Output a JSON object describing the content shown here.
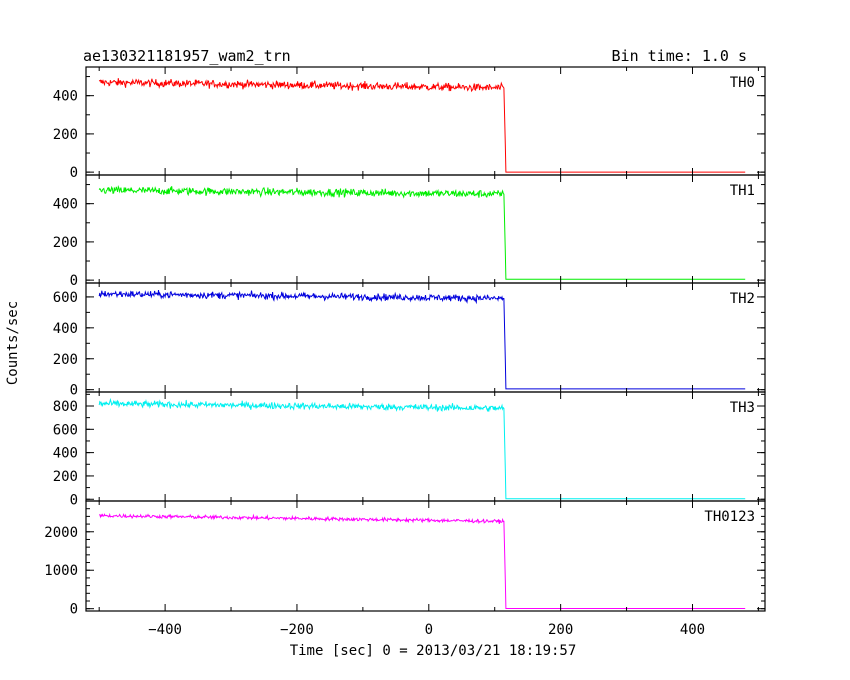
{
  "chart_data": {
    "type": "line",
    "title": "ae130321181957_wam2_trn",
    "bin_time": "Bin time: 1.0 s",
    "xlabel": "Time [sec] 0 = 2013/03/21 18:19:57",
    "ylabel": "Counts/sec",
    "xlim": [
      -520,
      510
    ],
    "x_ticks": [
      -400,
      -200,
      0,
      200,
      400
    ],
    "x_tick_labels": [
      "−400",
      "−200",
      "0",
      "200",
      "400"
    ],
    "step_time": 117,
    "x_start": -500,
    "x_end": 480,
    "grid": false,
    "panels": [
      {
        "name": "TH0",
        "color": "#ff0000",
        "ylim": [
          -15,
          550
        ],
        "y_ticks": [
          0,
          200,
          400
        ],
        "y_tick_labels": [
          "0",
          "200",
          "400"
        ],
        "minor_step": 100,
        "level_start": 470,
        "level_end": 440,
        "noise": 20,
        "after": 0
      },
      {
        "name": "TH1",
        "color": "#00ee00",
        "ylim": [
          -15,
          550
        ],
        "y_ticks": [
          0,
          200,
          400
        ],
        "y_tick_labels": [
          "0",
          "200",
          "400"
        ],
        "minor_step": 100,
        "level_start": 470,
        "level_end": 450,
        "noise": 20,
        "after": 5
      },
      {
        "name": "TH2",
        "color": "#0000dd",
        "ylim": [
          -15,
          690
        ],
        "y_ticks": [
          0,
          200,
          400,
          600
        ],
        "y_tick_labels": [
          "0",
          "200",
          "400",
          "600"
        ],
        "minor_step": 100,
        "level_start": 620,
        "level_end": 590,
        "noise": 22,
        "after": 5
      },
      {
        "name": "TH3",
        "color": "#00f0f0",
        "ylim": [
          -15,
          920
        ],
        "y_ticks": [
          0,
          200,
          400,
          600,
          800
        ],
        "y_tick_labels": [
          "0",
          "200",
          "400",
          "600",
          "800"
        ],
        "minor_step": 100,
        "level_start": 820,
        "level_end": 780,
        "noise": 28,
        "after": 5
      },
      {
        "name": "TH0123",
        "color": "#ff00ff",
        "ylim": [
          -60,
          2800
        ],
        "y_ticks": [
          0,
          1000,
          2000
        ],
        "y_tick_labels": [
          "0",
          "1000",
          "2000"
        ],
        "minor_step": 200,
        "level_start": 2420,
        "level_end": 2270,
        "noise": 45,
        "after": 5
      }
    ]
  }
}
